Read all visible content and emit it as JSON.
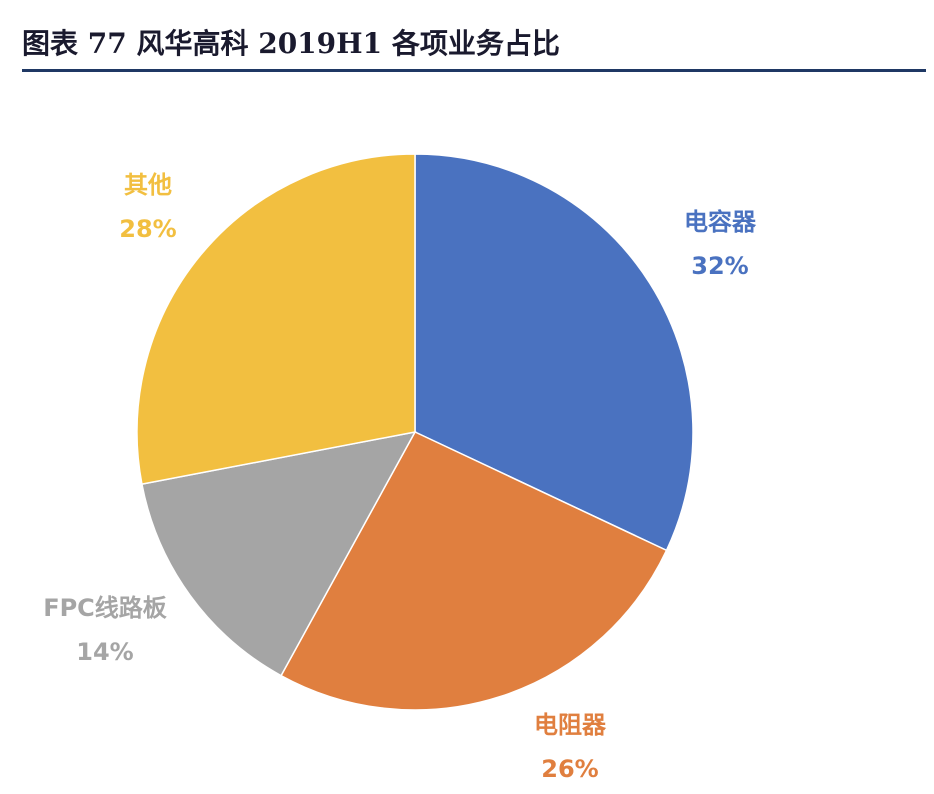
{
  "chart_data": {
    "type": "pie",
    "title": "图表 77 风华高科 2019H1 各项业务占比",
    "categories": [
      "电容器",
      "电阻器",
      "FPC线路板",
      "其他"
    ],
    "values": [
      32,
      26,
      14,
      28
    ],
    "value_labels": [
      "32%",
      "26%",
      "14%",
      "28%"
    ],
    "colors": [
      "#4a72c0",
      "#e07f3f",
      "#a5a5a5",
      "#f2bf40"
    ]
  }
}
